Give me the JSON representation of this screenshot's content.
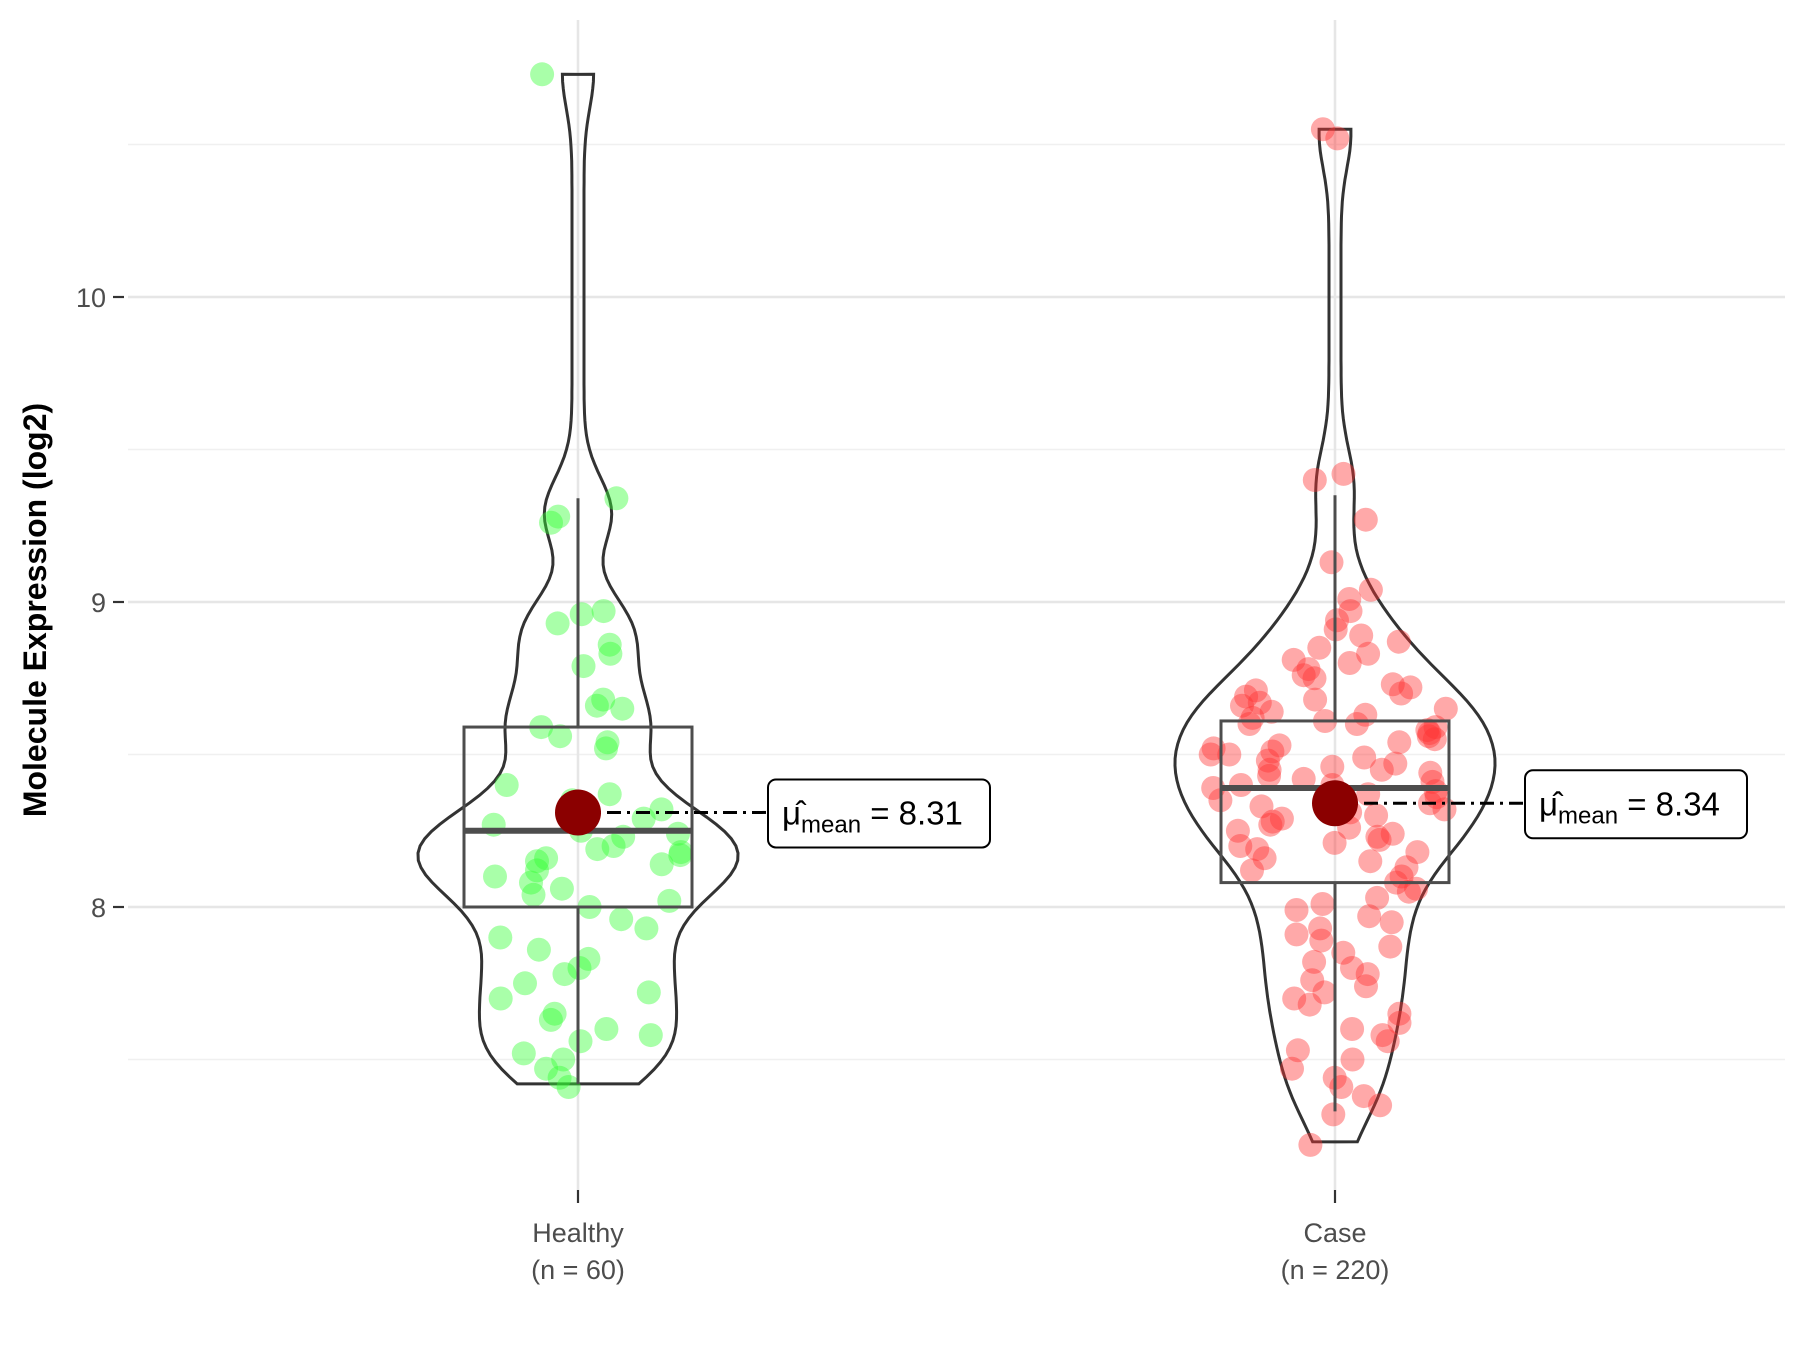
{
  "chart_data": {
    "type": "violin",
    "title": "",
    "xlabel": "",
    "ylabel": "Molecule Expression (log2)",
    "ylim": [
      7.05,
      10.95
    ],
    "yticks": [
      8,
      9,
      10
    ],
    "grid": true,
    "groups": [
      {
        "name": "Healthy",
        "n_label": "(n = 60)",
        "color": "#33ff33",
        "box": {
          "whisker_low": 7.42,
          "q1": 8.0,
          "median": 8.25,
          "q3": 8.59,
          "whisker_high": 9.34
        },
        "violin_range": [
          7.42,
          10.73
        ],
        "mean": 8.31,
        "mean_label": "8.31",
        "points": [
          10.73,
          9.34,
          9.28,
          9.26,
          8.97,
          8.96,
          8.93,
          8.86,
          8.83,
          8.79,
          8.68,
          8.66,
          8.65,
          8.59,
          8.56,
          8.54,
          8.52,
          8.4,
          8.37,
          8.35,
          8.32,
          8.29,
          8.27,
          8.25,
          8.24,
          8.23,
          8.2,
          8.19,
          8.18,
          8.17,
          8.16,
          8.15,
          8.14,
          8.12,
          8.1,
          8.08,
          8.06,
          8.04,
          8.02,
          8.0,
          7.96,
          7.93,
          7.9,
          7.86,
          7.83,
          7.8,
          7.78,
          7.75,
          7.72,
          7.7,
          7.65,
          7.63,
          7.6,
          7.58,
          7.56,
          7.52,
          7.5,
          7.47,
          7.44,
          7.41
        ]
      },
      {
        "name": "Case",
        "n_label": "(n = 220)",
        "color": "#ff3333",
        "box": {
          "whisker_low": 7.33,
          "q1": 8.08,
          "median": 8.39,
          "q3": 8.61,
          "whisker_high": 9.35
        },
        "violin_range": [
          7.23,
          10.55
        ],
        "mean": 8.34,
        "mean_label": "8.34",
        "points": [
          10.55,
          10.52,
          9.42,
          9.4,
          9.27,
          9.13,
          9.04,
          9.01,
          8.97,
          8.94,
          8.91,
          8.89,
          8.87,
          8.85,
          8.83,
          8.81,
          8.8,
          8.78,
          8.76,
          8.75,
          8.73,
          8.72,
          8.71,
          8.7,
          8.69,
          8.68,
          8.67,
          8.66,
          8.65,
          8.64,
          8.63,
          8.62,
          8.61,
          8.6,
          8.6,
          8.59,
          8.58,
          8.57,
          8.56,
          8.55,
          8.54,
          8.53,
          8.52,
          8.51,
          8.5,
          8.5,
          8.49,
          8.48,
          8.47,
          8.46,
          8.45,
          8.45,
          8.44,
          8.43,
          8.42,
          8.41,
          8.4,
          8.4,
          8.39,
          8.38,
          8.37,
          8.36,
          8.35,
          8.34,
          8.33,
          8.32,
          8.31,
          8.3,
          8.29,
          8.28,
          8.27,
          8.26,
          8.25,
          8.24,
          8.23,
          8.22,
          8.21,
          8.2,
          8.19,
          8.18,
          8.16,
          8.15,
          8.13,
          8.12,
          8.1,
          8.08,
          8.06,
          8.05,
          8.03,
          8.01,
          7.99,
          7.97,
          7.95,
          7.93,
          7.91,
          7.89,
          7.87,
          7.85,
          7.82,
          7.8,
          7.78,
          7.76,
          7.74,
          7.72,
          7.7,
          7.68,
          7.65,
          7.62,
          7.6,
          7.58,
          7.56,
          7.53,
          7.5,
          7.47,
          7.44,
          7.41,
          7.38,
          7.35,
          7.32,
          7.22
        ]
      }
    ]
  }
}
